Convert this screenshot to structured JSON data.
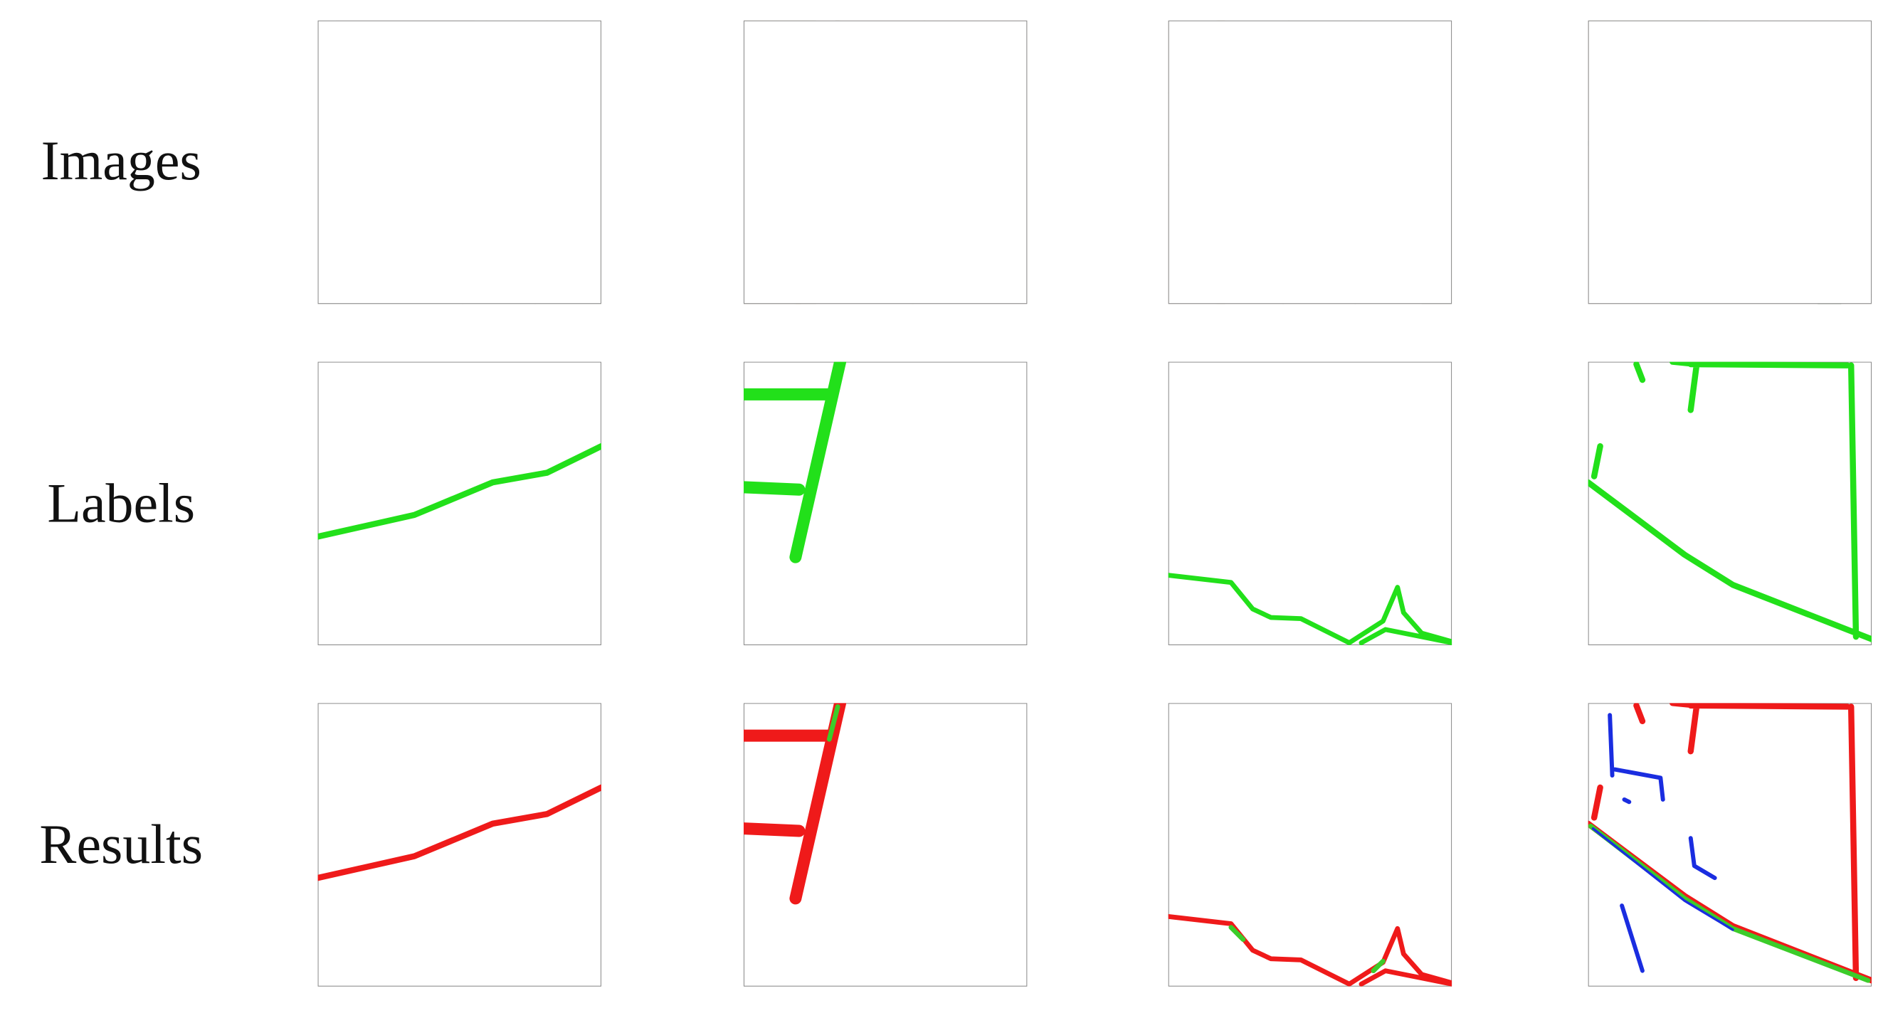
{
  "row_labels": [
    "Images",
    "Labels",
    "Results"
  ]
}
